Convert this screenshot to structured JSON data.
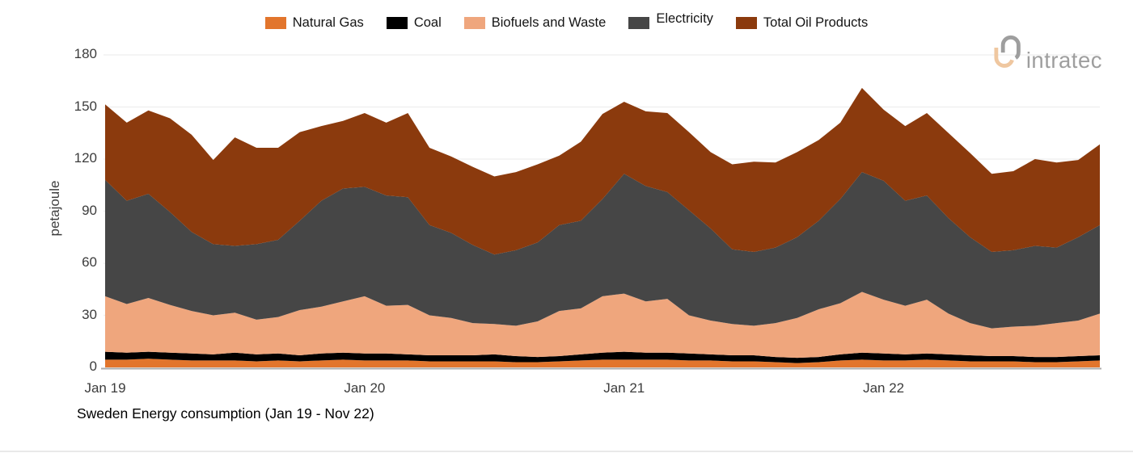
{
  "logo": {
    "brand": "intratec",
    "text": "intratec",
    "gray": "#9e9e9e",
    "peach": "#efc7a0"
  },
  "axis": {
    "ylabel": "petajoule",
    "baseline_color": "#ababab",
    "gridline_color": "#f0f0f0"
  },
  "chart_data": {
    "type": "area",
    "stacked": true,
    "title": "Sweden Energy consumption (Jan 19 - Nov 22)",
    "ylabel": "petajoule",
    "unit": "petajoule",
    "ylim": [
      0,
      180
    ],
    "yticks": [
      0,
      30,
      60,
      90,
      120,
      150,
      180
    ],
    "grid": "horizontal-faint",
    "legend_position": "top-center",
    "x": [
      "Jan 19",
      "Feb 19",
      "Mar 19",
      "Apr 19",
      "May 19",
      "Jun 19",
      "Jul 19",
      "Aug 19",
      "Sep 19",
      "Oct 19",
      "Nov 19",
      "Dec 19",
      "Jan 20",
      "Feb 20",
      "Mar 20",
      "Apr 20",
      "May 20",
      "Jun 20",
      "Jul 20",
      "Aug 20",
      "Sep 20",
      "Oct 20",
      "Nov 20",
      "Dec 20",
      "Jan 21",
      "Feb 21",
      "Mar 21",
      "Apr 21",
      "May 21",
      "Jun 21",
      "Jul 21",
      "Aug 21",
      "Sep 21",
      "Oct 21",
      "Nov 21",
      "Dec 21",
      "Jan 22",
      "Feb 22",
      "Mar 22",
      "Apr 22",
      "May 22",
      "Jun 22",
      "Jul 22",
      "Aug 22",
      "Sep 22",
      "Oct 22",
      "Nov 22"
    ],
    "xticks": [
      {
        "index": 0,
        "label": "Jan 19"
      },
      {
        "index": 12,
        "label": "Jan 20"
      },
      {
        "index": 24,
        "label": "Jan 21"
      },
      {
        "index": 36,
        "label": "Jan 22"
      }
    ],
    "series": [
      {
        "name": "Natural Gas",
        "color": "#e2752c",
        "values": [
          4.5,
          4.5,
          5,
          4.5,
          4,
          4,
          4,
          3.5,
          4,
          3.5,
          4,
          4.5,
          4,
          4,
          4,
          3.5,
          3.5,
          3.5,
          3.5,
          3,
          3,
          3.5,
          4,
          4.5,
          4.5,
          4.5,
          4.5,
          4,
          4,
          3.5,
          3.5,
          3,
          2.5,
          3,
          4,
          4.5,
          4,
          4,
          4.5,
          4,
          3.5,
          3.5,
          3.5,
          3,
          3,
          3.5,
          4
        ]
      },
      {
        "name": "Coal",
        "color": "#000000",
        "values": [
          4.5,
          4,
          4,
          4,
          4,
          3.5,
          4.5,
          4,
          4,
          3.5,
          4,
          4,
          4,
          4,
          3.5,
          3.5,
          3.5,
          3.5,
          4,
          3.5,
          3,
          3,
          3.5,
          4,
          4.5,
          4,
          4,
          4,
          3.5,
          3.5,
          3.5,
          3,
          3,
          3,
          3.5,
          4,
          4,
          3.5,
          3.5,
          3.5,
          3.5,
          3,
          3,
          3,
          3,
          3,
          3
        ]
      },
      {
        "name": "Biofuels and Waste",
        "color": "#efa67d",
        "values": [
          32,
          28,
          31,
          27.5,
          24.5,
          22.5,
          23,
          20,
          21,
          26,
          27,
          29.5,
          33,
          27.5,
          28.5,
          23,
          21.5,
          18.5,
          17.5,
          17.5,
          20.5,
          26,
          26.5,
          32.5,
          33.5,
          29.5,
          31,
          22,
          19.5,
          18,
          17,
          19.5,
          23,
          27.5,
          29.5,
          35,
          31,
          28,
          31,
          23.5,
          18.5,
          16,
          17,
          18,
          19.5,
          20.5,
          24
        ]
      },
      {
        "name": "Electricity",
        "color": "#464646",
        "values": [
          67,
          59.5,
          60,
          53.5,
          45.5,
          41,
          38.5,
          43.5,
          44.5,
          51.5,
          61,
          65,
          63,
          63.5,
          62,
          52,
          49,
          45,
          40,
          43.5,
          45.5,
          49.5,
          50.5,
          56,
          69,
          66.5,
          61.5,
          60.5,
          53,
          43,
          42.5,
          43.5,
          46.5,
          51,
          60,
          69,
          68.5,
          60.5,
          60,
          55,
          49.5,
          44,
          44,
          46,
          43.5,
          48,
          51
        ]
      },
      {
        "name": "Total Oil Products",
        "color": "#8b3a0d",
        "values": [
          43.5,
          45,
          48,
          54,
          56,
          48.5,
          62.5,
          55.5,
          53,
          51,
          43,
          39,
          42.5,
          42,
          48.5,
          44.5,
          44,
          45,
          45,
          45,
          45,
          40,
          45.5,
          49,
          41.5,
          43,
          45.5,
          45,
          44,
          49,
          52,
          49,
          49,
          46.5,
          44,
          48.5,
          41,
          43,
          47.5,
          49,
          48.5,
          45,
          45.5,
          50,
          49,
          44.5,
          46.5
        ]
      }
    ]
  }
}
